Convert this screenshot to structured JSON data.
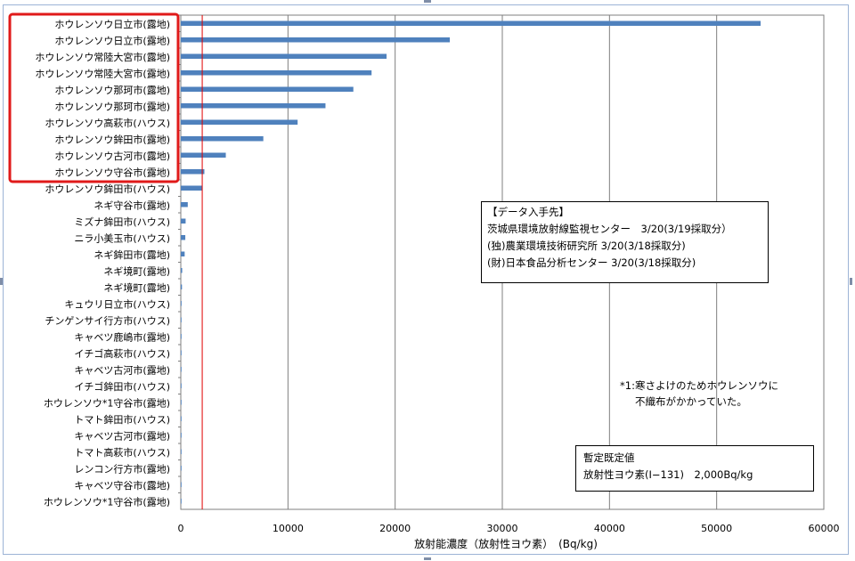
{
  "chart_data": {
    "type": "bar",
    "orientation": "horizontal",
    "categories": [
      "ホウレンソウ日立市(露地)",
      "ホウレンソウ日立市(露地)",
      "ホウレンソウ常陸大宮市(露地)",
      "ホウレンソウ常陸大宮市(露地)",
      "ホウレンソウ那珂市(露地)",
      "ホウレンソウ那珂市(露地)",
      "ホウレンソウ高萩市(ハウス)",
      "ホウレンソウ鉾田市(露地)",
      "ホウレンソウ古河市(露地)",
      "ホウレンソウ守谷市(露地)",
      "ホウレンソウ鉾田市(ハウス)",
      "ネギ守谷市(露地)",
      "ミズナ鉾田市(ハウス)",
      "ニラ小美玉市(ハウス)",
      "ネギ鉾田市(露地)",
      "ネギ境町(露地)",
      "ネギ境町(露地)",
      "キュウリ日立市(ハウス)",
      "チンゲンサイ行方市(ハウス)",
      "キャベツ鹿嶋市(露地)",
      "イチゴ高萩市(ハウス)",
      "キャベツ古河市(露地)",
      "イチゴ鉾田市(ハウス)",
      "ホウレンソウ*1守谷市(露地)",
      "トマト鉾田市(ハウス)",
      "キャベツ古河市(露地)",
      "トマト高萩市(ハウス)",
      "レンコン行方市(露地)",
      "キャベツ守谷市(露地)",
      "ホウレンソウ*1守谷市(露地)"
    ],
    "values": [
      54100,
      25100,
      19200,
      17800,
      16100,
      13500,
      10900,
      7700,
      4200,
      2200,
      2000,
      650,
      450,
      420,
      360,
      130,
      110,
      70,
      60,
      50,
      40,
      40,
      35,
      30,
      20,
      20,
      15,
      10,
      8,
      5
    ],
    "xlim": [
      0,
      60000
    ],
    "xticks": [
      "0",
      "10000",
      "20000",
      "30000",
      "40000",
      "50000",
      "60000"
    ],
    "xlabel": "放射能濃度（放射性ヨウ素）　(Bq/kg)",
    "grid": true,
    "reference_line": 2000,
    "highlight_rows": [
      0,
      9
    ],
    "colors": {
      "bar": "#4f81bd",
      "reference_line": "#e00000",
      "highlight": "#e01a1a",
      "grid": "#7f7f7f"
    }
  },
  "source_box": {
    "title": "【データ入手先】",
    "lines": [
      "茨城県環境放射線監視センター　3/20(3/19採取分）",
      "(独)農業環境技術研究所  3/20(3/18採取分)",
      "(財)日本食品分析センター   3/20(3/18採取分)"
    ]
  },
  "footnote": {
    "line1": "*1:寒さよけのためホウレンソウに",
    "line2": "不織布がかかっていた。"
  },
  "limit_box": {
    "title": "暫定既定値",
    "value": "放射性ヨウ素(I−131)　2,000Bq/kg"
  }
}
